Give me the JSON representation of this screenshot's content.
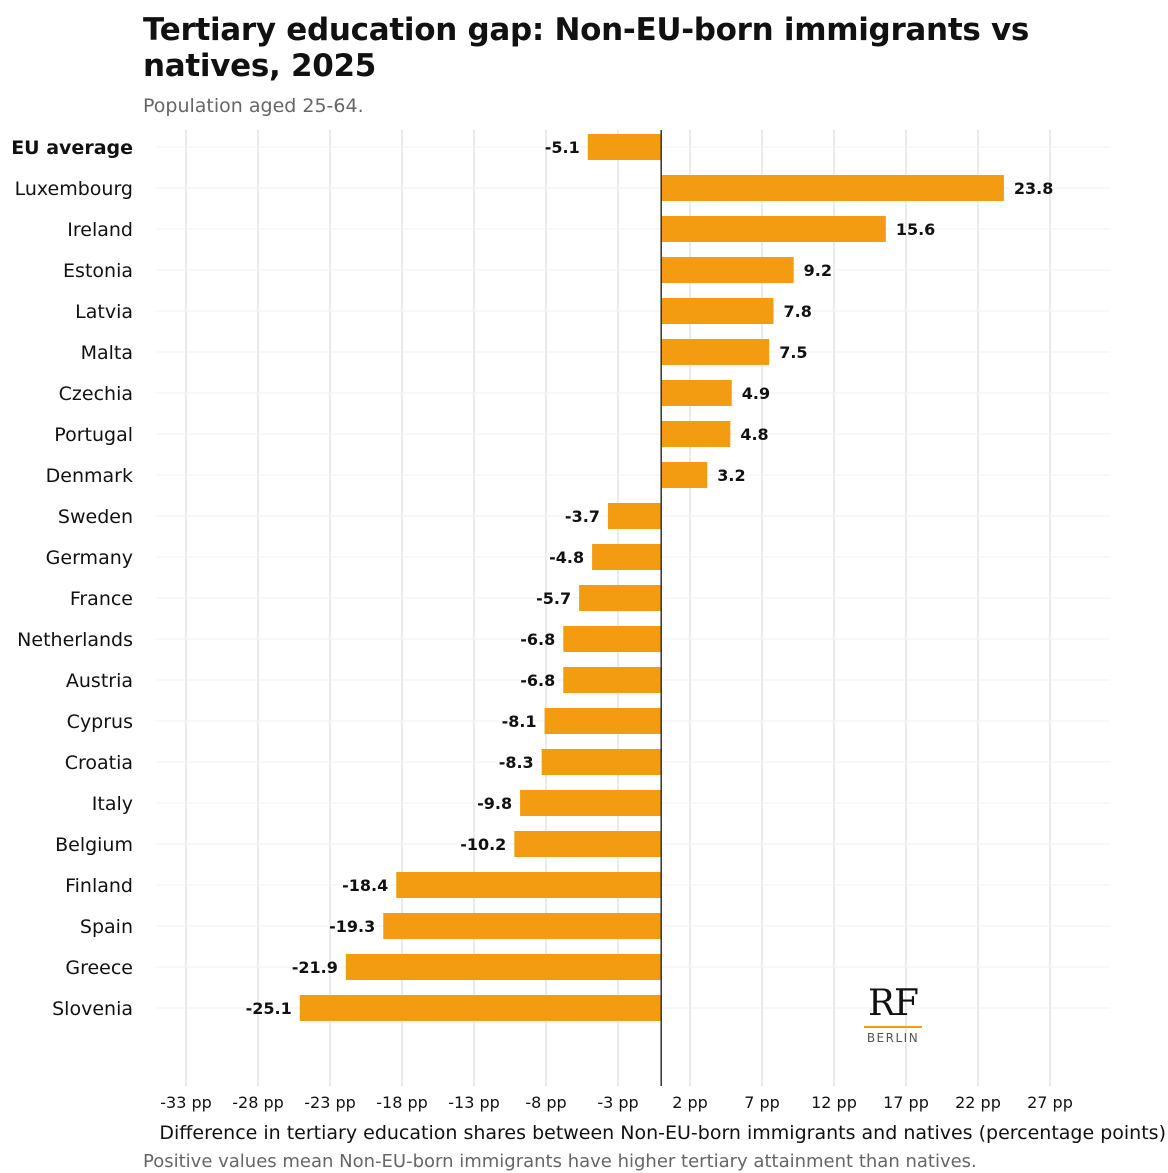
{
  "chart_data": {
    "type": "bar",
    "orientation": "horizontal",
    "title": "Tertiary education gap: Non-EU-born immigrants vs\n natives, 2025",
    "subtitle": "Population aged 25-64.",
    "xlabel": "Difference in tertiary education shares between Non-EU-born immigrants and natives (percentage points)",
    "caption": "Positive values mean Non-EU-born immigrants have higher tertiary attainment than natives.",
    "categories": [
      "EU average",
      "Luxembourg",
      "Ireland",
      "Estonia",
      "Latvia",
      "Malta",
      "Czechia",
      "Portugal",
      "Denmark",
      "Sweden",
      "Germany",
      "France",
      "Netherlands",
      "Austria",
      "Cyprus",
      "Croatia",
      "Italy",
      "Belgium",
      "Finland",
      "Spain",
      "Greece",
      "Slovenia"
    ],
    "values": [
      -5.1,
      23.8,
      15.6,
      9.2,
      7.8,
      7.5,
      4.9,
      4.8,
      3.2,
      -3.7,
      -4.8,
      -5.7,
      -6.8,
      -6.8,
      -8.1,
      -8.3,
      -9.8,
      -10.2,
      -18.4,
      -19.3,
      -21.9,
      -25.1
    ],
    "value_labels": [
      "-5.1",
      "23.8",
      "15.6",
      "9.2",
      "7.8",
      "7.5",
      "4.9",
      "4.8",
      "3.2",
      "-3.7",
      "-4.8",
      "-5.7",
      "-6.8",
      "-6.8",
      "-8.1",
      "-8.3",
      "-9.8",
      "-10.2",
      "-18.4",
      "-19.3",
      "-21.9",
      "-25.1"
    ],
    "highlight_category": "EU average",
    "xticks": [
      -33,
      -28,
      -23,
      -18,
      -13,
      -8,
      -3,
      2,
      7,
      12,
      17,
      22,
      27
    ],
    "xtick_labels": [
      "-33 pp",
      "-28 pp",
      "-23 pp",
      "-18 pp",
      "-13 pp",
      "-8 pp",
      "-3 pp",
      "2 pp",
      "7 pp",
      "12 pp",
      "17 pp",
      "22 pp",
      "27 pp"
    ],
    "xlim": [
      -33,
      27
    ],
    "grid": true,
    "zero_line": true,
    "bar_color": "#f39c12"
  },
  "logo": {
    "mark": "RF",
    "sub": "BERLIN",
    "accent": "#f39c12"
  }
}
